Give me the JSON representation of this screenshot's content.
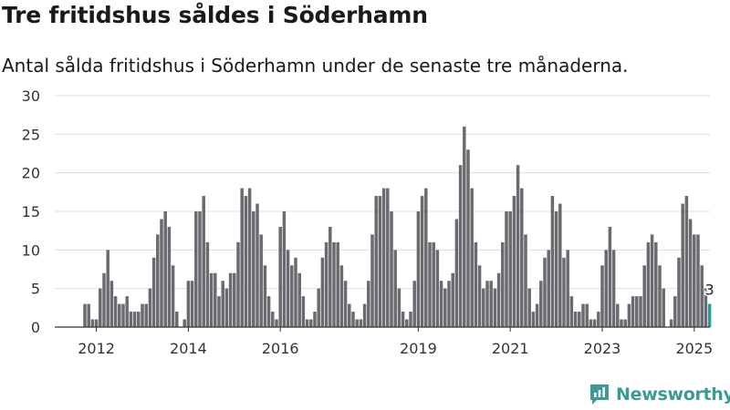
{
  "header": {
    "title": "Tre fritidshus såldes i Söderhamn",
    "subtitle": "Antal sålda fritidshus i Söderhamn under de senaste tre månaderna."
  },
  "chart_data": {
    "type": "bar",
    "title": "Tre fritidshus såldes i Söderhamn",
    "subtitle": "Antal sålda fritidshus i Söderhamn under de senaste tre månaderna.",
    "xlabel": "",
    "ylabel": "",
    "ylim": [
      0,
      30
    ],
    "yticks": [
      0,
      5,
      10,
      15,
      20,
      25,
      30
    ],
    "x_start": "2011-10",
    "x_end": "2025-11",
    "xtick_labels": [
      {
        "label": "2012",
        "month": "2012-01"
      },
      {
        "label": "2014",
        "month": "2014-01"
      },
      {
        "label": "2016",
        "month": "2016-01"
      },
      {
        "label": "2019",
        "month": "2019-01"
      },
      {
        "label": "2021",
        "month": "2021-01"
      },
      {
        "label": "2023",
        "month": "2023-01"
      },
      {
        "label": "2025",
        "month": "2025-01"
      }
    ],
    "grid": true,
    "legend": "none",
    "highlight_label": "3",
    "colors": {
      "bar": "#6b6a70",
      "highlight": "#2a9d8f",
      "grid": "#dddddd",
      "axis": "#333333"
    },
    "values": [
      3,
      3,
      1,
      1,
      5,
      7,
      10,
      6,
      4,
      3,
      3,
      4,
      2,
      2,
      2,
      3,
      3,
      5,
      9,
      12,
      14,
      15,
      13,
      8,
      2,
      0,
      1,
      6,
      6,
      15,
      15,
      17,
      11,
      7,
      7,
      4,
      6,
      5,
      7,
      7,
      11,
      18,
      17,
      18,
      15,
      16,
      12,
      8,
      4,
      2,
      1,
      13,
      15,
      10,
      8,
      9,
      7,
      4,
      1,
      1,
      2,
      5,
      9,
      11,
      13,
      11,
      11,
      8,
      6,
      3,
      2,
      1,
      1,
      3,
      6,
      12,
      17,
      17,
      18,
      18,
      15,
      10,
      5,
      2,
      1,
      2,
      6,
      15,
      17,
      18,
      11,
      11,
      10,
      6,
      5,
      6,
      7,
      14,
      21,
      26,
      23,
      18,
      11,
      8,
      5,
      6,
      6,
      5,
      7,
      11,
      15,
      15,
      17,
      21,
      18,
      12,
      5,
      2,
      3,
      6,
      9,
      10,
      17,
      15,
      16,
      9,
      10,
      4,
      2,
      2,
      3,
      3,
      1,
      1,
      2,
      8,
      10,
      13,
      10,
      3,
      1,
      1,
      3,
      4,
      4,
      4,
      8,
      11,
      12,
      11,
      8,
      5,
      0,
      1,
      4,
      9,
      16,
      17,
      14,
      12,
      12,
      8,
      5,
      3
    ]
  },
  "branding": {
    "name": "Newsworthy"
  }
}
